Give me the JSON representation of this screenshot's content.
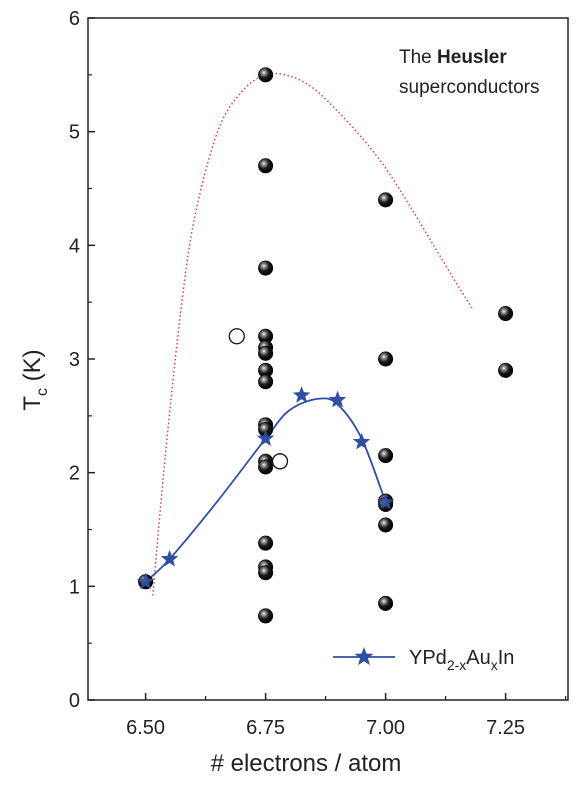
{
  "chart_data": {
    "type": "scatter",
    "xlabel": "# electrons / atom",
    "ylabel_main": "T",
    "ylabel_sub": "c",
    "ylabel_unit": " (K)",
    "xlim": [
      6.38,
      7.38
    ],
    "ylim": [
      0,
      6
    ],
    "x_ticks": [
      6.5,
      6.75,
      7.0,
      7.25
    ],
    "x_tick_labels": [
      "6.50",
      "6.75",
      "7.00",
      "7.25"
    ],
    "y_ticks": [
      0,
      1,
      2,
      3,
      4,
      5,
      6
    ],
    "y_tick_labels": [
      "0",
      "1",
      "2",
      "3",
      "4",
      "5",
      "6"
    ],
    "annotation": {
      "line1": "The ",
      "line1_bold": "Heusler",
      "line2": "superconductors"
    },
    "colors": {
      "star_series": "#2f4fa3",
      "envelope": "#e0362c",
      "filled_points": "#111111"
    },
    "series": [
      {
        "kind": "filled-spheres",
        "points": [
          [
            6.75,
            5.5
          ],
          [
            6.75,
            4.7
          ],
          [
            6.75,
            3.8
          ],
          [
            6.75,
            3.2
          ],
          [
            6.75,
            3.1
          ],
          [
            6.75,
            3.05
          ],
          [
            6.75,
            2.9
          ],
          [
            6.75,
            2.8
          ],
          [
            6.75,
            2.42
          ],
          [
            6.75,
            2.38
          ],
          [
            6.75,
            2.1
          ],
          [
            6.75,
            2.05
          ],
          [
            6.75,
            1.38
          ],
          [
            6.75,
            1.17
          ],
          [
            6.75,
            1.12
          ],
          [
            6.75,
            0.74
          ],
          [
            6.5,
            1.04
          ],
          [
            7.0,
            4.4
          ],
          [
            7.0,
            3.0
          ],
          [
            7.0,
            2.15
          ],
          [
            7.0,
            1.75
          ],
          [
            7.0,
            1.72
          ],
          [
            7.0,
            1.54
          ],
          [
            7.0,
            0.85
          ],
          [
            7.25,
            3.4
          ],
          [
            7.25,
            2.9
          ]
        ]
      },
      {
        "kind": "open-circles",
        "points": [
          [
            6.69,
            3.2
          ],
          [
            6.78,
            2.1
          ]
        ]
      },
      {
        "kind": "star-line",
        "name": "YPd",
        "name_sub1": "2-x",
        "name_mid": "Au",
        "name_sub2": "x",
        "name_end": "In",
        "points": [
          [
            6.5,
            1.04
          ],
          [
            6.55,
            1.24
          ],
          [
            6.75,
            2.3
          ],
          [
            6.825,
            2.68
          ],
          [
            6.9,
            2.64
          ],
          [
            6.95,
            2.27
          ],
          [
            7.0,
            1.74
          ]
        ],
        "curve": [
          [
            6.5,
            1.04
          ],
          [
            6.55,
            1.24
          ],
          [
            6.65,
            1.75
          ],
          [
            6.75,
            2.3
          ],
          [
            6.8,
            2.55
          ],
          [
            6.86,
            2.65
          ],
          [
            6.9,
            2.6
          ],
          [
            6.95,
            2.3
          ],
          [
            7.0,
            1.74
          ]
        ]
      },
      {
        "kind": "dotted-envelope",
        "curve": [
          [
            6.515,
            0.92
          ],
          [
            6.54,
            2.1
          ],
          [
            6.57,
            3.3
          ],
          [
            6.6,
            4.2
          ],
          [
            6.65,
            5.0
          ],
          [
            6.7,
            5.35
          ],
          [
            6.75,
            5.5
          ],
          [
            6.8,
            5.49
          ],
          [
            6.85,
            5.38
          ],
          [
            6.9,
            5.18
          ],
          [
            6.95,
            4.95
          ],
          [
            7.0,
            4.68
          ],
          [
            7.05,
            4.35
          ],
          [
            7.1,
            4.0
          ],
          [
            7.15,
            3.65
          ],
          [
            7.18,
            3.45
          ]
        ]
      }
    ]
  }
}
